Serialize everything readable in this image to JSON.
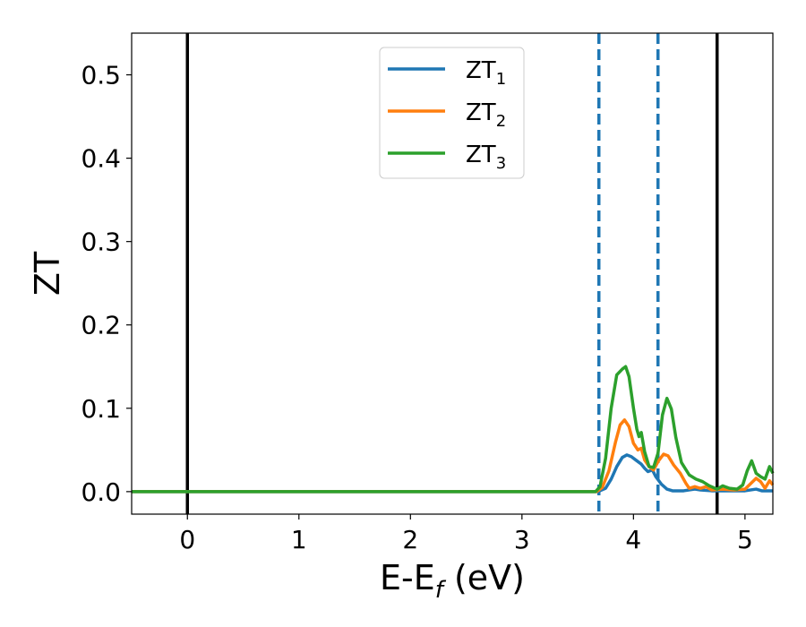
{
  "chart_data": {
    "type": "line",
    "xlabel": {
      "main": "E-E",
      "sub": "f",
      "tail": " (eV)"
    },
    "ylabel": "ZT",
    "xlim": [
      -0.5,
      5.25
    ],
    "ylim": [
      -0.027,
      0.55
    ],
    "xticks": [
      0,
      1,
      2,
      3,
      4,
      5
    ],
    "xtick_labels": [
      "0",
      "1",
      "2",
      "3",
      "4",
      "5"
    ],
    "yticks": [
      0.0,
      0.1,
      0.2,
      0.3,
      0.4,
      0.5
    ],
    "ytick_labels": [
      "0.0",
      "0.1",
      "0.2",
      "0.3",
      "0.4",
      "0.5"
    ],
    "grid": false,
    "legend_position": "top-center",
    "vlines": [
      {
        "x": 0.0,
        "style": "solid",
        "color": "#000000"
      },
      {
        "x": 3.69,
        "style": "dashed",
        "color": "#1f77b4"
      },
      {
        "x": 4.22,
        "style": "dashed",
        "color": "#1f77b4"
      },
      {
        "x": 4.75,
        "style": "solid",
        "color": "#000000"
      }
    ],
    "series": [
      {
        "name": "ZT",
        "sub": "1",
        "color": "#1f77b4",
        "points": [
          [
            -0.5,
            0
          ],
          [
            3.68,
            0
          ],
          [
            3.75,
            0.004
          ],
          [
            3.8,
            0.015
          ],
          [
            3.85,
            0.03
          ],
          [
            3.9,
            0.041
          ],
          [
            3.94,
            0.044
          ],
          [
            3.98,
            0.042
          ],
          [
            4.03,
            0.037
          ],
          [
            4.07,
            0.033
          ],
          [
            4.1,
            0.028
          ],
          [
            4.13,
            0.024
          ],
          [
            4.17,
            0.026
          ],
          [
            4.2,
            0.018
          ],
          [
            4.25,
            0.009
          ],
          [
            4.3,
            0.003
          ],
          [
            4.35,
            0.001
          ],
          [
            4.45,
            0.001
          ],
          [
            4.55,
            0.003
          ],
          [
            4.6,
            0.002
          ],
          [
            4.7,
            0.001
          ],
          [
            4.8,
            0.001
          ],
          [
            5.0,
            0.001
          ],
          [
            5.1,
            0.003
          ],
          [
            5.15,
            0.001
          ],
          [
            5.25,
            0.001
          ]
        ]
      },
      {
        "name": "ZT",
        "sub": "2",
        "color": "#ff7f0e",
        "points": [
          [
            -0.5,
            0
          ],
          [
            3.67,
            0
          ],
          [
            3.72,
            0.005
          ],
          [
            3.78,
            0.025
          ],
          [
            3.84,
            0.06
          ],
          [
            3.88,
            0.08
          ],
          [
            3.92,
            0.086
          ],
          [
            3.96,
            0.078
          ],
          [
            4.0,
            0.058
          ],
          [
            4.04,
            0.05
          ],
          [
            4.07,
            0.052
          ],
          [
            4.1,
            0.038
          ],
          [
            4.14,
            0.03
          ],
          [
            4.18,
            0.026
          ],
          [
            4.22,
            0.036
          ],
          [
            4.27,
            0.045
          ],
          [
            4.31,
            0.043
          ],
          [
            4.36,
            0.032
          ],
          [
            4.42,
            0.022
          ],
          [
            4.47,
            0.01
          ],
          [
            4.5,
            0.004
          ],
          [
            4.55,
            0.006
          ],
          [
            4.6,
            0.004
          ],
          [
            4.65,
            0.006
          ],
          [
            4.7,
            0.002
          ],
          [
            4.8,
            0.003
          ],
          [
            4.9,
            0.002
          ],
          [
            5.0,
            0.003
          ],
          [
            5.1,
            0.016
          ],
          [
            5.14,
            0.012
          ],
          [
            5.18,
            0.004
          ],
          [
            5.22,
            0.013
          ],
          [
            5.25,
            0.008
          ]
        ]
      },
      {
        "name": "ZT",
        "sub": "3",
        "color": "#2ca02c",
        "points": [
          [
            -0.5,
            0
          ],
          [
            3.66,
            0
          ],
          [
            3.7,
            0.006
          ],
          [
            3.75,
            0.04
          ],
          [
            3.8,
            0.1
          ],
          [
            3.85,
            0.14
          ],
          [
            3.9,
            0.147
          ],
          [
            3.93,
            0.15
          ],
          [
            3.96,
            0.138
          ],
          [
            4.0,
            0.1
          ],
          [
            4.03,
            0.075
          ],
          [
            4.05,
            0.066
          ],
          [
            4.07,
            0.071
          ],
          [
            4.1,
            0.048
          ],
          [
            4.14,
            0.03
          ],
          [
            4.18,
            0.029
          ],
          [
            4.22,
            0.046
          ],
          [
            4.26,
            0.092
          ],
          [
            4.3,
            0.112
          ],
          [
            4.34,
            0.099
          ],
          [
            4.38,
            0.065
          ],
          [
            4.43,
            0.035
          ],
          [
            4.5,
            0.02
          ],
          [
            4.56,
            0.015
          ],
          [
            4.62,
            0.012
          ],
          [
            4.68,
            0.007
          ],
          [
            4.75,
            0.003
          ],
          [
            4.8,
            0.007
          ],
          [
            4.86,
            0.004
          ],
          [
            4.93,
            0.003
          ],
          [
            4.98,
            0.008
          ],
          [
            5.02,
            0.025
          ],
          [
            5.06,
            0.037
          ],
          [
            5.1,
            0.022
          ],
          [
            5.14,
            0.018
          ],
          [
            5.18,
            0.015
          ],
          [
            5.22,
            0.03
          ],
          [
            5.25,
            0.022
          ]
        ]
      }
    ]
  }
}
